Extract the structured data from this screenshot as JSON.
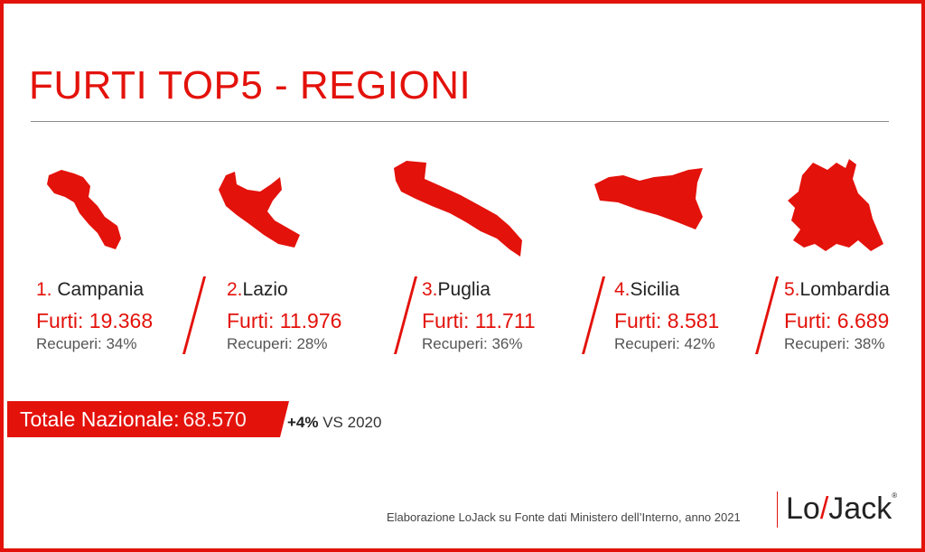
{
  "title": "FURTI TOP5 - REGIONI",
  "regions": [
    {
      "rank": "1.",
      "name": "Campania",
      "furti": "Furti: 19.368",
      "recuperi": "Recuperi: 34%",
      "shape": "campania-map-icon"
    },
    {
      "rank": "2.",
      "name": "Lazio",
      "furti": "Furti: 11.976",
      "recuperi": "Recuperi: 28%",
      "shape": "lazio-map-icon"
    },
    {
      "rank": "3.",
      "name": "Puglia",
      "furti": "Furti: 11.711",
      "recuperi": "Recuperi: 36%",
      "shape": "puglia-map-icon"
    },
    {
      "rank": "4.",
      "name": "Sicilia",
      "furti": "Furti: 8.581",
      "recuperi": "Recuperi: 42%",
      "shape": "sicilia-map-icon"
    },
    {
      "rank": "5.",
      "name": "Lombardia",
      "furti": "Furti: 6.689",
      "recuperi": "Recuperi: 38%",
      "shape": "lombardia-map-icon"
    }
  ],
  "total": {
    "label": "Totale Nazionale",
    "sep": ":",
    "value": " 68.570"
  },
  "delta": {
    "pct": "+4%",
    "text": " VS 2020"
  },
  "source": "Elaborazione LoJack su Fonte dati Ministero dell’Interno, anno 2021",
  "logo": {
    "left": "Lo",
    "mark": "/",
    "right": "Jack",
    "reg": "®"
  },
  "colors": {
    "accent": "#e3120b",
    "text": "#222222",
    "muted": "#555555"
  }
}
